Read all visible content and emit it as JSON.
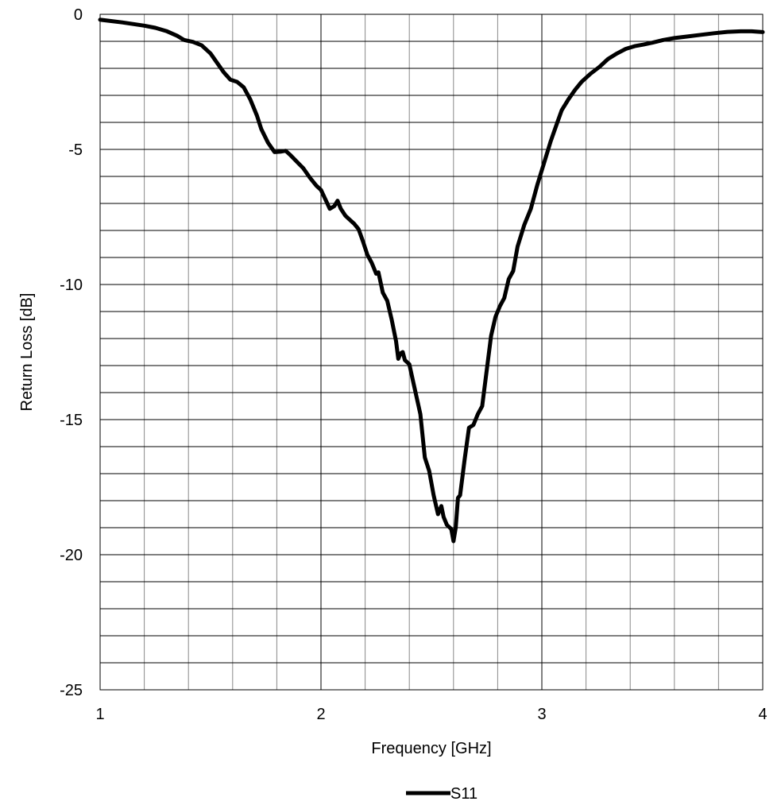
{
  "chart_data": {
    "type": "line",
    "title": "",
    "xlabel": "Frequency [GHz]",
    "ylabel": "Return Loss [dB]",
    "xlim": [
      1,
      4
    ],
    "ylim": [
      -25,
      0
    ],
    "x_ticks": [
      1,
      2,
      3,
      4
    ],
    "y_ticks": [
      0,
      -5,
      -10,
      -15,
      -20,
      -25
    ],
    "x_minor_step": 0.2,
    "y_minor_step": 1,
    "grid": true,
    "legend": "bottom-center",
    "series": [
      {
        "name": "S11",
        "color": "#000000",
        "points": [
          [
            1.0,
            -0.2
          ],
          [
            1.1,
            -0.3
          ],
          [
            1.2,
            -0.42
          ],
          [
            1.25,
            -0.5
          ],
          [
            1.3,
            -0.62
          ],
          [
            1.35,
            -0.8
          ],
          [
            1.38,
            -0.95
          ],
          [
            1.42,
            -1.02
          ],
          [
            1.46,
            -1.15
          ],
          [
            1.5,
            -1.45
          ],
          [
            1.53,
            -1.8
          ],
          [
            1.56,
            -2.15
          ],
          [
            1.59,
            -2.42
          ],
          [
            1.62,
            -2.5
          ],
          [
            1.65,
            -2.7
          ],
          [
            1.68,
            -3.15
          ],
          [
            1.71,
            -3.75
          ],
          [
            1.73,
            -4.25
          ],
          [
            1.76,
            -4.75
          ],
          [
            1.79,
            -5.1
          ],
          [
            1.82,
            -5.08
          ],
          [
            1.84,
            -5.05
          ],
          [
            1.86,
            -5.2
          ],
          [
            1.89,
            -5.45
          ],
          [
            1.92,
            -5.7
          ],
          [
            1.95,
            -6.05
          ],
          [
            1.98,
            -6.35
          ],
          [
            2.0,
            -6.5
          ],
          [
            2.02,
            -6.85
          ],
          [
            2.04,
            -7.2
          ],
          [
            2.06,
            -7.1
          ],
          [
            2.075,
            -6.9
          ],
          [
            2.09,
            -7.2
          ],
          [
            2.11,
            -7.45
          ],
          [
            2.13,
            -7.6
          ],
          [
            2.15,
            -7.75
          ],
          [
            2.17,
            -7.95
          ],
          [
            2.19,
            -8.4
          ],
          [
            2.21,
            -8.9
          ],
          [
            2.23,
            -9.2
          ],
          [
            2.25,
            -9.6
          ],
          [
            2.26,
            -9.55
          ],
          [
            2.28,
            -10.3
          ],
          [
            2.3,
            -10.6
          ],
          [
            2.32,
            -11.3
          ],
          [
            2.34,
            -12.1
          ],
          [
            2.35,
            -12.75
          ],
          [
            2.36,
            -12.55
          ],
          [
            2.37,
            -12.5
          ],
          [
            2.38,
            -12.8
          ],
          [
            2.4,
            -12.95
          ],
          [
            2.42,
            -13.7
          ],
          [
            2.45,
            -14.8
          ],
          [
            2.47,
            -16.4
          ],
          [
            2.49,
            -16.9
          ],
          [
            2.51,
            -17.8
          ],
          [
            2.53,
            -18.5
          ],
          [
            2.545,
            -18.2
          ],
          [
            2.555,
            -18.6
          ],
          [
            2.57,
            -18.9
          ],
          [
            2.59,
            -19.05
          ],
          [
            2.6,
            -19.5
          ],
          [
            2.61,
            -19.0
          ],
          [
            2.62,
            -17.9
          ],
          [
            2.63,
            -17.8
          ],
          [
            2.65,
            -16.5
          ],
          [
            2.67,
            -15.3
          ],
          [
            2.69,
            -15.2
          ],
          [
            2.71,
            -14.8
          ],
          [
            2.73,
            -14.5
          ],
          [
            2.75,
            -13.2
          ],
          [
            2.77,
            -11.9
          ],
          [
            2.79,
            -11.2
          ],
          [
            2.81,
            -10.8
          ],
          [
            2.83,
            -10.5
          ],
          [
            2.85,
            -9.8
          ],
          [
            2.87,
            -9.5
          ],
          [
            2.89,
            -8.6
          ],
          [
            2.92,
            -7.8
          ],
          [
            2.95,
            -7.2
          ],
          [
            2.98,
            -6.3
          ],
          [
            3.01,
            -5.5
          ],
          [
            3.04,
            -4.7
          ],
          [
            3.07,
            -4.0
          ],
          [
            3.09,
            -3.55
          ],
          [
            3.12,
            -3.15
          ],
          [
            3.15,
            -2.8
          ],
          [
            3.18,
            -2.5
          ],
          [
            3.22,
            -2.2
          ],
          [
            3.26,
            -1.95
          ],
          [
            3.3,
            -1.65
          ],
          [
            3.34,
            -1.45
          ],
          [
            3.38,
            -1.28
          ],
          [
            3.42,
            -1.18
          ],
          [
            3.46,
            -1.12
          ],
          [
            3.5,
            -1.05
          ],
          [
            3.55,
            -0.95
          ],
          [
            3.6,
            -0.88
          ],
          [
            3.66,
            -0.82
          ],
          [
            3.72,
            -0.76
          ],
          [
            3.78,
            -0.7
          ],
          [
            3.84,
            -0.65
          ],
          [
            3.9,
            -0.63
          ],
          [
            3.95,
            -0.63
          ],
          [
            4.0,
            -0.66
          ]
        ]
      }
    ]
  }
}
